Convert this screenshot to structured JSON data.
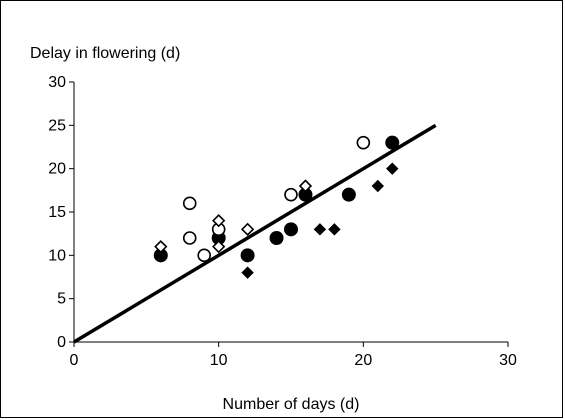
{
  "chart_data": {
    "type": "scatter",
    "title": "",
    "xlabel": "Number of days (d)",
    "ylabel": "Delay in flowering (d)",
    "xlim": [
      0,
      30
    ],
    "ylim": [
      0,
      30
    ],
    "x_ticks": [
      "0",
      "10",
      "20",
      "30"
    ],
    "y_ticks": [
      "0",
      "5",
      "10",
      "15",
      "20",
      "25",
      "30"
    ],
    "grid": false,
    "legend": "none",
    "series": [
      {
        "marker": "filled-circle",
        "points": [
          [
            6,
            10
          ],
          [
            10,
            12
          ],
          [
            12,
            10
          ],
          [
            14,
            12
          ],
          [
            15,
            13
          ],
          [
            16,
            17
          ],
          [
            19,
            17
          ],
          [
            22,
            23
          ]
        ]
      },
      {
        "marker": "open-circle",
        "points": [
          [
            8,
            16
          ],
          [
            8,
            12
          ],
          [
            9,
            10
          ],
          [
            10,
            13
          ],
          [
            15,
            17
          ],
          [
            20,
            23
          ]
        ]
      },
      {
        "marker": "open-diamond",
        "points": [
          [
            6,
            11
          ],
          [
            10,
            14
          ],
          [
            10,
            11
          ],
          [
            12,
            13
          ],
          [
            16,
            18
          ]
        ]
      },
      {
        "marker": "filled-diamond",
        "points": [
          [
            12,
            8
          ],
          [
            17,
            13
          ],
          [
            18,
            13
          ],
          [
            21,
            18
          ],
          [
            22,
            20
          ]
        ]
      }
    ],
    "trendline": {
      "from": [
        0,
        0
      ],
      "to": [
        25,
        25
      ]
    },
    "colors": {
      "marks": "#000000",
      "background": "#ffffff"
    }
  }
}
